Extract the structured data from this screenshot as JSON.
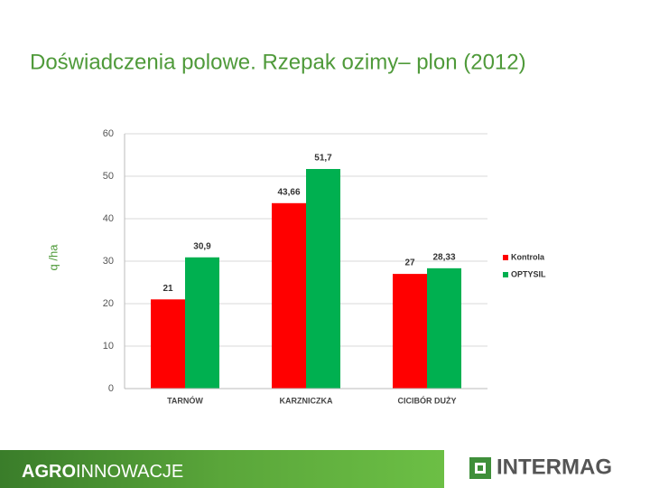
{
  "chart_data": {
    "type": "bar",
    "title": "Doświadczenia polowe. Rzepak ozimy– plon (2012)",
    "y_label": "q /ha",
    "categories": [
      "TARNÓW",
      "KARZNICZKA",
      "CICIBÓR DUŻY"
    ],
    "series": [
      {
        "name": "Kontrola",
        "color": "#ff0000",
        "values": [
          21,
          43.66,
          27
        ],
        "value_labels": [
          "21",
          "43,66",
          "27"
        ]
      },
      {
        "name": "OPTYSIL",
        "color": "#00b050",
        "values": [
          30.9,
          51.7,
          28.33
        ],
        "value_labels": [
          "30,9",
          "51,7",
          "28,33"
        ]
      }
    ],
    "ylim": [
      0,
      60
    ],
    "yticks": [
      0,
      10,
      20,
      30,
      40,
      50,
      60
    ],
    "grid": true,
    "legend": "right"
  },
  "footer": {
    "brand_bold": "AGRO",
    "brand_light": "INNOWACJE",
    "logo": "INTERMAG"
  }
}
